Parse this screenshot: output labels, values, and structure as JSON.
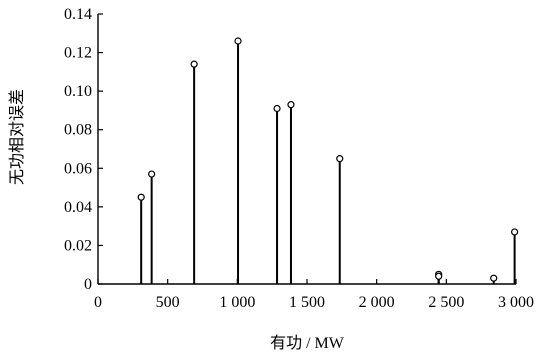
{
  "chart_data": {
    "type": "stem",
    "title": "",
    "xlabel": "有功 / MW",
    "ylabel": "无功相对误差",
    "xlim": [
      0,
      3000
    ],
    "ylim": [
      0,
      0.14
    ],
    "x_ticks": [
      0,
      500,
      1000,
      1500,
      2000,
      2500,
      3000
    ],
    "x_tick_labels": [
      "0",
      "500",
      "1 000",
      "1 500",
      "2 000",
      "2 500",
      "3 000"
    ],
    "y_ticks": [
      0,
      0.02,
      0.04,
      0.06,
      0.08,
      0.1,
      0.12,
      0.14
    ],
    "y_tick_labels": [
      "0",
      "0.02",
      "0.04",
      "0.06",
      "0.08",
      "0.10",
      "0.12",
      "0.14"
    ],
    "grid": false,
    "marker": "open-circle",
    "series": [
      {
        "points": [
          {
            "x": 310,
            "y": 0.045
          },
          {
            "x": 385,
            "y": 0.057
          },
          {
            "x": 690,
            "y": 0.114
          },
          {
            "x": 1005,
            "y": 0.126
          },
          {
            "x": 1285,
            "y": 0.091
          },
          {
            "x": 1385,
            "y": 0.093
          },
          {
            "x": 1735,
            "y": 0.065
          },
          {
            "x": 2445,
            "y": 0.005
          },
          {
            "x": 2445,
            "y": 0.004
          },
          {
            "x": 2840,
            "y": 0.003
          },
          {
            "x": 2990,
            "y": 0.027
          }
        ]
      }
    ]
  }
}
